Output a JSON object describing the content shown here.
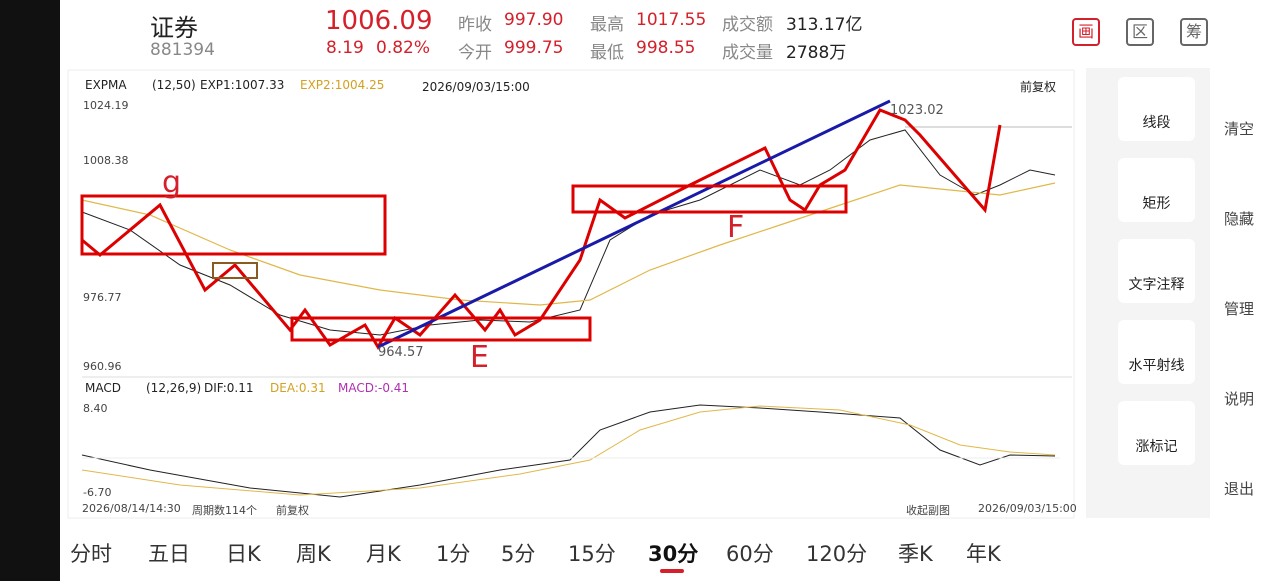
{
  "header": {
    "name": "证券",
    "code": "881394",
    "price": "1006.09",
    "change": "8.19",
    "change_pct": "0.82%",
    "stats": [
      {
        "label": "昨收",
        "value": "997.90"
      },
      {
        "label": "今开",
        "value": "999.75"
      },
      {
        "label": "最高",
        "value": "1017.55"
      },
      {
        "label": "最低",
        "value": "998.55"
      },
      {
        "label": "成交额",
        "value": "313.17亿"
      },
      {
        "label": "成交量",
        "value": "2788万"
      }
    ],
    "icons": [
      "画",
      "区",
      "筹"
    ]
  },
  "main_chart": {
    "indicator": "EXPMA",
    "params": "(12,50)",
    "exp1": "EXP1:1007.33",
    "exp2": "EXP2:1004.25",
    "time": "2026/09/03/15:00",
    "adjust": "前复权",
    "y_labels": [
      "1024.19",
      "1008.38",
      "976.77",
      "960.96"
    ],
    "high_label": "1023.02",
    "low_label": "964.57",
    "annotations": [
      "g",
      "F",
      "E"
    ]
  },
  "sub_chart": {
    "indicator": "MACD",
    "params": "(12,26,9)",
    "dif": "DIF:0.11",
    "dea": "DEA:0.31",
    "macd": "MACD:-0.41",
    "y_labels": [
      "8.40",
      "-6.70"
    ]
  },
  "footer": {
    "start": "2026/08/14/14:30",
    "count": "周期数114个",
    "adjust": "前复权",
    "collapse": "收起副图",
    "end": "2026/09/03/15:00"
  },
  "tools": [
    "线段",
    "矩形",
    "文字注释",
    "水平射线",
    "涨标记"
  ],
  "side": [
    "清空",
    "隐藏",
    "管理",
    "说明",
    "退出"
  ],
  "periods": [
    "分时",
    "五日",
    "日K",
    "周K",
    "月K",
    "1分",
    "5分",
    "15分",
    "30分",
    "60分",
    "120分",
    "季K",
    "年K"
  ],
  "selected_period": "30分"
}
